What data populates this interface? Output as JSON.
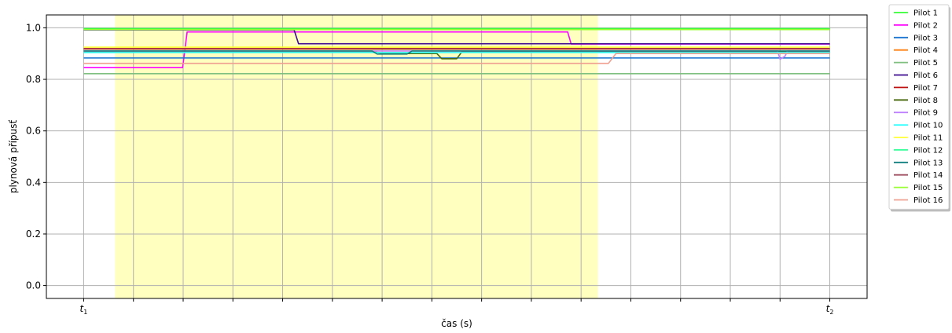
{
  "chart_data": {
    "type": "line",
    "xlabel": "čas (s)",
    "ylabel": "plynová přípusť",
    "x_tick_labels": [
      {
        "label": "t",
        "sub": "1",
        "x": 0
      },
      {
        "label": "t",
        "sub": "2",
        "x": 15
      }
    ],
    "xlim": [
      -0.75,
      15.75
    ],
    "ylim": [
      -0.05,
      1.05
    ],
    "y_ticks": [
      0.0,
      0.2,
      0.4,
      0.6,
      0.8,
      1.0
    ],
    "y_tick_labels": [
      "0.0",
      "0.2",
      "0.4",
      "0.6",
      "0.8",
      "1.0"
    ],
    "x_grid": [
      0,
      1,
      2,
      3,
      4,
      5,
      6,
      7,
      8,
      9,
      10,
      11,
      12,
      13,
      14,
      15
    ],
    "grid": true,
    "legend_position": "outside-top-right",
    "highlight_span": {
      "x_start": 0.63,
      "x_end": 10.34,
      "color": "#ffffc0"
    },
    "series": [
      {
        "name": "Pilot 1",
        "color": "#33ff33",
        "points": [
          [
            0,
            0.997
          ],
          [
            15,
            0.997
          ]
        ]
      },
      {
        "name": "Pilot 2",
        "color": "#ff00ff",
        "points": [
          [
            0,
            0.846
          ],
          [
            1.99,
            0.846
          ],
          [
            2.08,
            0.984
          ],
          [
            9.73,
            0.984
          ],
          [
            9.8,
            0.937
          ],
          [
            15,
            0.937
          ]
        ]
      },
      {
        "name": "Pilot 3",
        "color": "#1f77d4",
        "points": [
          [
            0,
            0.883
          ],
          [
            15,
            0.883
          ]
        ]
      },
      {
        "name": "Pilot 4",
        "color": "#ff7f0e",
        "points": [
          [
            0,
            0.917
          ],
          [
            15,
            0.917
          ]
        ]
      },
      {
        "name": "Pilot 5",
        "color": "#7fbf7f",
        "points": [
          [
            0,
            0.822
          ],
          [
            15,
            0.822
          ]
        ]
      },
      {
        "name": "Pilot 6",
        "color": "#3d0a91",
        "points": [
          [
            0,
            0.992
          ],
          [
            4.23,
            0.992
          ],
          [
            4.32,
            0.938
          ],
          [
            15,
            0.938
          ]
        ]
      },
      {
        "name": "Pilot 7",
        "color": "#c01010",
        "points": [
          [
            0,
            0.92
          ],
          [
            15,
            0.92
          ]
        ]
      },
      {
        "name": "Pilot 8",
        "color": "#4a6b10",
        "points": [
          [
            0,
            0.905
          ],
          [
            5.9,
            0.905
          ],
          [
            6.0,
            0.9
          ],
          [
            7.1,
            0.9
          ],
          [
            7.2,
            0.88
          ],
          [
            7.5,
            0.88
          ],
          [
            7.6,
            0.906
          ],
          [
            15,
            0.906
          ]
        ]
      },
      {
        "name": "Pilot 9",
        "color": "#bf80ff",
        "points": [
          [
            0,
            0.91
          ],
          [
            13.95,
            0.91
          ],
          [
            14.0,
            0.878
          ],
          [
            14.1,
            0.89
          ],
          [
            14.15,
            0.91
          ],
          [
            15,
            0.91
          ]
        ]
      },
      {
        "name": "Pilot 10",
        "color": "#33ffff",
        "points": [
          [
            0,
            0.904
          ],
          [
            15,
            0.904
          ]
        ]
      },
      {
        "name": "Pilot 11",
        "color": "#ffff33",
        "points": [
          [
            0,
            0.925
          ],
          [
            15,
            0.925
          ]
        ]
      },
      {
        "name": "Pilot 12",
        "color": "#33ff99",
        "points": [
          [
            0,
            0.993
          ],
          [
            15,
            0.993
          ]
        ]
      },
      {
        "name": "Pilot 13",
        "color": "#108080",
        "points": [
          [
            0,
            0.91
          ],
          [
            5.8,
            0.91
          ],
          [
            5.9,
            0.898
          ],
          [
            6.5,
            0.898
          ],
          [
            6.6,
            0.91
          ],
          [
            15,
            0.91
          ]
        ]
      },
      {
        "name": "Pilot 14",
        "color": "#a05060",
        "points": [
          [
            0,
            0.918
          ],
          [
            15,
            0.918
          ]
        ]
      },
      {
        "name": "Pilot 15",
        "color": "#99ff33",
        "points": [
          [
            0,
            0.993
          ],
          [
            15,
            0.993
          ]
        ]
      },
      {
        "name": "Pilot 16",
        "color": "#f0a090",
        "points": [
          [
            0,
            0.862
          ],
          [
            10.55,
            0.862
          ],
          [
            10.7,
            0.9
          ],
          [
            15,
            0.9
          ]
        ]
      }
    ]
  }
}
